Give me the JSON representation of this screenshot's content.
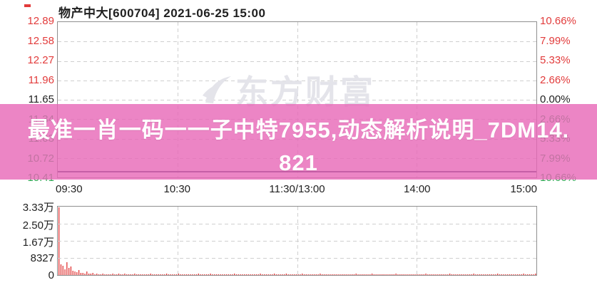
{
  "header": {
    "title": "物产中大[600704] 2021-06-25 15:00"
  },
  "marker": {
    "color": "#e23b3b"
  },
  "watermark": {
    "text": "东方财富",
    "icon": "eastmoney-swoosh-icon",
    "color": "#e4e4ea"
  },
  "overlay": {
    "full_text": "最准一肖一码一一子中特7955,动态解析说明_7DM14.821",
    "lines": [
      "最准一肖一码一一子中特7955,动态解析说明_7DM14.",
      "821"
    ],
    "bg_color": "#e767b7",
    "text_color": "#ffffff"
  },
  "colors": {
    "up": "#e23b3b",
    "down": "#2fa351",
    "neutral": "#1f1f1f",
    "grid": "#cfcfcf",
    "plot_border": "#8f8f8f",
    "volume_bar": "#e13535",
    "price_line": "#3c3c64"
  },
  "chart_data": [
    {
      "type": "line",
      "title": "物产中大[600704] 2021-06-25 15:00",
      "xlabel": "",
      "ylabel": "",
      "x_ticks": [
        "09:30",
        "10:30",
        "11:30/13:00",
        "14:00",
        "15:00"
      ],
      "y_ticks_price": [
        "12.89",
        "12.58",
        "12.27",
        "11.96",
        "11.65",
        "11.34",
        "11.03",
        "10.72",
        "10.41"
      ],
      "y_ticks_percent": [
        "10.66%",
        "7.99%",
        "5.33%",
        "2.66%",
        "0.00%",
        "2.66%",
        "5.33%",
        "7.99%",
        "10.66%"
      ],
      "prev_close": 11.65,
      "ylim": [
        10.41,
        12.89
      ],
      "grid": true,
      "legend": false,
      "series": [
        {
          "name": "price",
          "note": "mostly hidden under promo overlay; flat near lower band",
          "x": [
            "09:30",
            "15:00"
          ],
          "values": [
            10.5,
            10.5
          ]
        }
      ]
    },
    {
      "type": "bar",
      "name": "volume",
      "y_ticks": [
        "3.33万",
        "2.50万",
        "1.67万",
        "8327",
        "0"
      ],
      "ymax": 33300,
      "values": [
        33300,
        5100,
        4500,
        2700,
        6200,
        3400,
        4100,
        2000,
        1700,
        1400,
        2600,
        900,
        1200,
        800,
        1900,
        700,
        600,
        900,
        500,
        800,
        450,
        380,
        600,
        320,
        500,
        280,
        420,
        650,
        350,
        300,
        550,
        400,
        320,
        700,
        380,
        300,
        480,
        350,
        600,
        320,
        300,
        520,
        360,
        280,
        450,
        330,
        600,
        300,
        380,
        500,
        280,
        350,
        420,
        300,
        560,
        330,
        280,
        440,
        370,
        300,
        650,
        320,
        400,
        280,
        500,
        350,
        300,
        430,
        380,
        280,
        550,
        310,
        360,
        290,
        470,
        330,
        600,
        300,
        350,
        280,
        420,
        360,
        300,
        520,
        280,
        390,
        340,
        300,
        610,
        330,
        280,
        450,
        370,
        300,
        500,
        320,
        360,
        280,
        430,
        310,
        300,
        560,
        330,
        400,
        280,
        480,
        320,
        300,
        650,
        350,
        290,
        420,
        380,
        300,
        530,
        310,
        280,
        460,
        340,
        300,
        380,
        300,
        550,
        320,
        290,
        440,
        360,
        280,
        500,
        330,
        300,
        600,
        340,
        280,
        420,
        370,
        300,
        480,
        320,
        290,
        450,
        310,
        280,
        520,
        350,
        300,
        400,
        330,
        280,
        570,
        320,
        300,
        460,
        350,
        280,
        430,
        300,
        610,
        330,
        290,
        350,
        500,
        300,
        320,
        440,
        280,
        380,
        330,
        300,
        550,
        310,
        280,
        470,
        340,
        300,
        420,
        360,
        290,
        500,
        320,
        300,
        430,
        330,
        280,
        580,
        320,
        300,
        450,
        370,
        280,
        520,
        310,
        300,
        400,
        340,
        280,
        600,
        330,
        300,
        460,
        320,
        280,
        490,
        350,
        300,
        420,
        330,
        280,
        540,
        310,
        300,
        440,
        360,
        280,
        510,
        320,
        300,
        470,
        340,
        290,
        600,
        320,
        350,
        280,
        450,
        330,
        300,
        520,
        360,
        280,
        430,
        310,
        300,
        560,
        330,
        280,
        480,
        350,
        320,
        700
      ]
    }
  ]
}
